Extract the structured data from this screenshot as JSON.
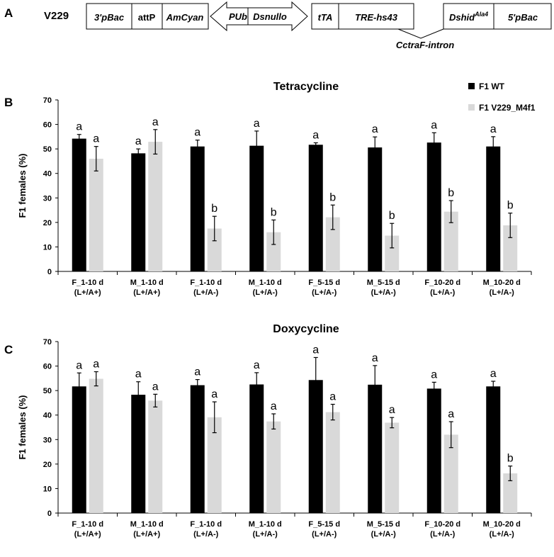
{
  "panel_a": {
    "panel_label": "A",
    "construct_name": "V229",
    "boxes": {
      "left": [
        "3'pBac",
        "attP",
        "AmCyan"
      ],
      "arrow": [
        "PUb",
        "Dsnullo"
      ],
      "mid": [
        "tTA",
        "TRE-hs43"
      ],
      "right_gene": "Dshid",
      "right_gene_sup": "Ala4",
      "right_end": "5'pBac"
    },
    "intron_label": "CctraF-intron"
  },
  "legend": {
    "wt": "F1 WT",
    "mut": "F1 V229_M4f1",
    "wt_color": "#000000",
    "mut_color": "#d9d9d9"
  },
  "chart_data": [
    {
      "type": "bar",
      "panel_label": "B",
      "title": "Tetracycline",
      "ylabel": "F1 females  (%)",
      "ylim": [
        0,
        70
      ],
      "yticks": [
        "0",
        "10",
        "20",
        "30",
        "40",
        "50",
        "60",
        "70"
      ],
      "categories": [
        "F_1-10 d",
        "M_1-10 d",
        "F_1-10 d",
        "M_1-10 d",
        "F_5-15 d",
        "M_5-15 d",
        "F_10-20 d",
        "M_10-20 d"
      ],
      "subcategories": [
        "(L+/A+)",
        "(L+/A+)",
        "(L+/A-)",
        "(L+/A-)",
        "(L+/A-)",
        "(L+/A-)",
        "(L+/A-)",
        "(L+/A-)"
      ],
      "series": [
        {
          "name": "F1 WT",
          "values": [
            54.2,
            48.2,
            51.0,
            51.3,
            51.7,
            50.6,
            52.6,
            51.0
          ],
          "errors": [
            1.7,
            1.8,
            2.6,
            6.0,
            0.8,
            4.3,
            4.0,
            4.0
          ],
          "letters": [
            "a",
            "a",
            "a",
            "a",
            "a",
            "a",
            "a",
            "a"
          ]
        },
        {
          "name": "F1 V229_M4f1",
          "values": [
            46.0,
            52.9,
            17.5,
            16.0,
            22.1,
            14.6,
            24.4,
            18.8
          ],
          "errors": [
            5.0,
            5.0,
            5.0,
            5.0,
            5.0,
            5.0,
            4.5,
            5.0
          ],
          "letters": [
            "a",
            "a",
            "b",
            "b",
            "b",
            "b",
            "b",
            "b"
          ]
        }
      ]
    },
    {
      "type": "bar",
      "panel_label": "C",
      "title": "Doxycycline",
      "ylabel": "F1 females  (%)",
      "ylim": [
        0,
        70
      ],
      "yticks": [
        "0",
        "10",
        "20",
        "30",
        "40",
        "50",
        "60",
        "70"
      ],
      "categories": [
        "F_1-10 d",
        "M_1-10 d",
        "F_1-10 d",
        "M_1-10 d",
        "F_5-15 d",
        "M_5-15 d",
        "F_10-20 d",
        "M_10-20 d"
      ],
      "subcategories": [
        "(L+/A+)",
        "(L+/A+)",
        "(L+/A-)",
        "(L+/A-)",
        "(L+/A-)",
        "(L+/A-)",
        "(L+/A-)",
        "(L+/A-)"
      ],
      "series": [
        {
          "name": "F1 WT",
          "values": [
            51.7,
            48.3,
            52.2,
            52.5,
            54.3,
            52.4,
            50.8,
            51.7
          ],
          "errors": [
            5.5,
            5.3,
            2.3,
            4.8,
            9.2,
            7.8,
            2.6,
            2.1
          ],
          "letters": [
            "a",
            "a",
            "a",
            "a",
            "a",
            "a",
            "a",
            "a"
          ]
        },
        {
          "name": "F1 V229_M4f1",
          "values": [
            54.8,
            45.9,
            39.1,
            37.4,
            41.2,
            36.9,
            32.0,
            16.2
          ],
          "errors": [
            2.9,
            2.6,
            6.3,
            3.1,
            3.2,
            2.1,
            5.3,
            3.0
          ],
          "letters": [
            "a",
            "a",
            "a",
            "a",
            "a",
            "a",
            "a",
            "b"
          ]
        }
      ]
    }
  ]
}
